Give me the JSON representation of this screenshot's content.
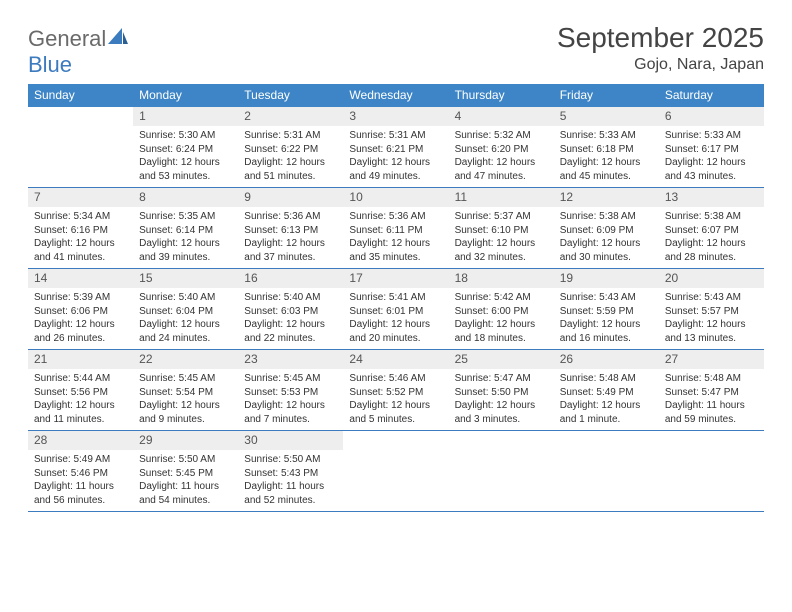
{
  "brand": {
    "word1": "General",
    "word2": "Blue"
  },
  "colors": {
    "header_bg": "#3d85c6",
    "accent": "#3d7bbf",
    "day_num_bg": "#eeeeee",
    "text": "#333333",
    "title": "#444444",
    "logo_gray": "#6a6a6a"
  },
  "title": "September 2025",
  "location": "Gojo, Nara, Japan",
  "weekdays": [
    "Sunday",
    "Monday",
    "Tuesday",
    "Wednesday",
    "Thursday",
    "Friday",
    "Saturday"
  ],
  "fonts": {
    "title_size": 28,
    "location_size": 16,
    "weekday_size": 12,
    "daynum_size": 12,
    "body_size": 10
  },
  "weeks": [
    [
      {
        "n": "",
        "sr": "",
        "ss": "",
        "dl": ""
      },
      {
        "n": "1",
        "sr": "Sunrise: 5:30 AM",
        "ss": "Sunset: 6:24 PM",
        "dl": "Daylight: 12 hours and 53 minutes."
      },
      {
        "n": "2",
        "sr": "Sunrise: 5:31 AM",
        "ss": "Sunset: 6:22 PM",
        "dl": "Daylight: 12 hours and 51 minutes."
      },
      {
        "n": "3",
        "sr": "Sunrise: 5:31 AM",
        "ss": "Sunset: 6:21 PM",
        "dl": "Daylight: 12 hours and 49 minutes."
      },
      {
        "n": "4",
        "sr": "Sunrise: 5:32 AM",
        "ss": "Sunset: 6:20 PM",
        "dl": "Daylight: 12 hours and 47 minutes."
      },
      {
        "n": "5",
        "sr": "Sunrise: 5:33 AM",
        "ss": "Sunset: 6:18 PM",
        "dl": "Daylight: 12 hours and 45 minutes."
      },
      {
        "n": "6",
        "sr": "Sunrise: 5:33 AM",
        "ss": "Sunset: 6:17 PM",
        "dl": "Daylight: 12 hours and 43 minutes."
      }
    ],
    [
      {
        "n": "7",
        "sr": "Sunrise: 5:34 AM",
        "ss": "Sunset: 6:16 PM",
        "dl": "Daylight: 12 hours and 41 minutes."
      },
      {
        "n": "8",
        "sr": "Sunrise: 5:35 AM",
        "ss": "Sunset: 6:14 PM",
        "dl": "Daylight: 12 hours and 39 minutes."
      },
      {
        "n": "9",
        "sr": "Sunrise: 5:36 AM",
        "ss": "Sunset: 6:13 PM",
        "dl": "Daylight: 12 hours and 37 minutes."
      },
      {
        "n": "10",
        "sr": "Sunrise: 5:36 AM",
        "ss": "Sunset: 6:11 PM",
        "dl": "Daylight: 12 hours and 35 minutes."
      },
      {
        "n": "11",
        "sr": "Sunrise: 5:37 AM",
        "ss": "Sunset: 6:10 PM",
        "dl": "Daylight: 12 hours and 32 minutes."
      },
      {
        "n": "12",
        "sr": "Sunrise: 5:38 AM",
        "ss": "Sunset: 6:09 PM",
        "dl": "Daylight: 12 hours and 30 minutes."
      },
      {
        "n": "13",
        "sr": "Sunrise: 5:38 AM",
        "ss": "Sunset: 6:07 PM",
        "dl": "Daylight: 12 hours and 28 minutes."
      }
    ],
    [
      {
        "n": "14",
        "sr": "Sunrise: 5:39 AM",
        "ss": "Sunset: 6:06 PM",
        "dl": "Daylight: 12 hours and 26 minutes."
      },
      {
        "n": "15",
        "sr": "Sunrise: 5:40 AM",
        "ss": "Sunset: 6:04 PM",
        "dl": "Daylight: 12 hours and 24 minutes."
      },
      {
        "n": "16",
        "sr": "Sunrise: 5:40 AM",
        "ss": "Sunset: 6:03 PM",
        "dl": "Daylight: 12 hours and 22 minutes."
      },
      {
        "n": "17",
        "sr": "Sunrise: 5:41 AM",
        "ss": "Sunset: 6:01 PM",
        "dl": "Daylight: 12 hours and 20 minutes."
      },
      {
        "n": "18",
        "sr": "Sunrise: 5:42 AM",
        "ss": "Sunset: 6:00 PM",
        "dl": "Daylight: 12 hours and 18 minutes."
      },
      {
        "n": "19",
        "sr": "Sunrise: 5:43 AM",
        "ss": "Sunset: 5:59 PM",
        "dl": "Daylight: 12 hours and 16 minutes."
      },
      {
        "n": "20",
        "sr": "Sunrise: 5:43 AM",
        "ss": "Sunset: 5:57 PM",
        "dl": "Daylight: 12 hours and 13 minutes."
      }
    ],
    [
      {
        "n": "21",
        "sr": "Sunrise: 5:44 AM",
        "ss": "Sunset: 5:56 PM",
        "dl": "Daylight: 12 hours and 11 minutes."
      },
      {
        "n": "22",
        "sr": "Sunrise: 5:45 AM",
        "ss": "Sunset: 5:54 PM",
        "dl": "Daylight: 12 hours and 9 minutes."
      },
      {
        "n": "23",
        "sr": "Sunrise: 5:45 AM",
        "ss": "Sunset: 5:53 PM",
        "dl": "Daylight: 12 hours and 7 minutes."
      },
      {
        "n": "24",
        "sr": "Sunrise: 5:46 AM",
        "ss": "Sunset: 5:52 PM",
        "dl": "Daylight: 12 hours and 5 minutes."
      },
      {
        "n": "25",
        "sr": "Sunrise: 5:47 AM",
        "ss": "Sunset: 5:50 PM",
        "dl": "Daylight: 12 hours and 3 minutes."
      },
      {
        "n": "26",
        "sr": "Sunrise: 5:48 AM",
        "ss": "Sunset: 5:49 PM",
        "dl": "Daylight: 12 hours and 1 minute."
      },
      {
        "n": "27",
        "sr": "Sunrise: 5:48 AM",
        "ss": "Sunset: 5:47 PM",
        "dl": "Daylight: 11 hours and 59 minutes."
      }
    ],
    [
      {
        "n": "28",
        "sr": "Sunrise: 5:49 AM",
        "ss": "Sunset: 5:46 PM",
        "dl": "Daylight: 11 hours and 56 minutes."
      },
      {
        "n": "29",
        "sr": "Sunrise: 5:50 AM",
        "ss": "Sunset: 5:45 PM",
        "dl": "Daylight: 11 hours and 54 minutes."
      },
      {
        "n": "30",
        "sr": "Sunrise: 5:50 AM",
        "ss": "Sunset: 5:43 PM",
        "dl": "Daylight: 11 hours and 52 minutes."
      },
      {
        "n": "",
        "sr": "",
        "ss": "",
        "dl": ""
      },
      {
        "n": "",
        "sr": "",
        "ss": "",
        "dl": ""
      },
      {
        "n": "",
        "sr": "",
        "ss": "",
        "dl": ""
      },
      {
        "n": "",
        "sr": "",
        "ss": "",
        "dl": ""
      }
    ]
  ]
}
